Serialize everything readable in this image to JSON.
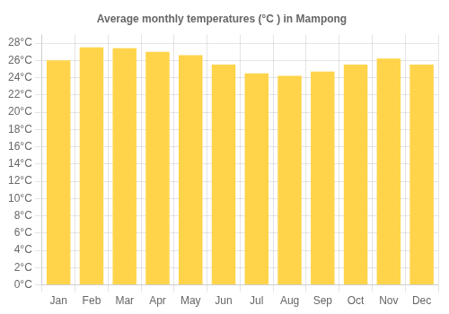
{
  "chart_data": {
    "type": "bar",
    "title": "Average monthly temperatures (°C ) in Mampong",
    "categories": [
      "Jan",
      "Feb",
      "Mar",
      "Apr",
      "May",
      "Jun",
      "Jul",
      "Aug",
      "Sep",
      "Oct",
      "Nov",
      "Dec"
    ],
    "values": [
      26.0,
      27.5,
      27.4,
      27.0,
      26.6,
      25.5,
      24.5,
      24.2,
      24.7,
      25.5,
      26.2,
      25.5
    ],
    "color": "#FFD44A",
    "ylim": [
      0,
      29
    ],
    "yticks": [
      {
        "value": 0,
        "label": "0°C"
      },
      {
        "value": 2,
        "label": "2°C"
      },
      {
        "value": 4,
        "label": "4°C"
      },
      {
        "value": 6,
        "label": "6°C"
      },
      {
        "value": 8,
        "label": "8°C"
      },
      {
        "value": 10,
        "label": "10°C"
      },
      {
        "value": 12,
        "label": "12°C"
      },
      {
        "value": 14,
        "label": "14°C"
      },
      {
        "value": 16,
        "label": "16°C"
      },
      {
        "value": 18,
        "label": "18°C"
      },
      {
        "value": 20,
        "label": "20°C"
      },
      {
        "value": 22,
        "label": "22°C"
      },
      {
        "value": 24,
        "label": "24°C"
      },
      {
        "value": 26,
        "label": "26°C"
      },
      {
        "value": 28,
        "label": "28°C"
      }
    ],
    "grid": true
  }
}
